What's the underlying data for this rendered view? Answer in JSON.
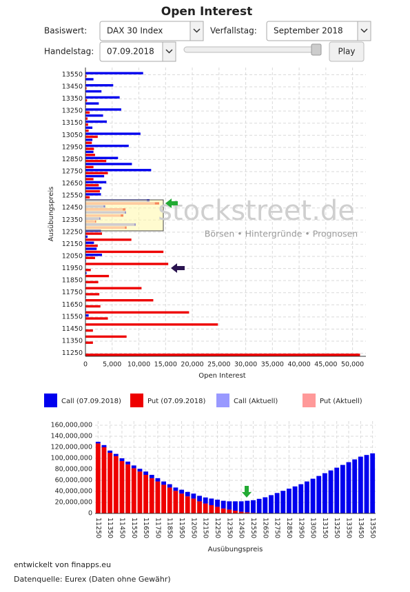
{
  "header": {
    "title": "Open Interest"
  },
  "controls": {
    "basiswert_label": "Basiswert:",
    "basiswert_value": "DAX 30 Index",
    "verfallstag_label": "Verfallstag:",
    "verfallstag_value": "September 2018",
    "handelstag_label": "Handelstag:",
    "handelstag_value": "07.09.2018",
    "play_button": "Play"
  },
  "watermark": {
    "logo": "stockstreet.de",
    "tagline": "Börsen • Hintergründe • Prognosen"
  },
  "chart_data": [
    {
      "type": "hbar",
      "x_label": "Open Interest",
      "y_label": "Ausübungspreis",
      "categories": [
        13550,
        null,
        13450,
        null,
        13350,
        null,
        13250,
        null,
        13150,
        null,
        13050,
        null,
        12950,
        null,
        12850,
        null,
        12750,
        null,
        12650,
        null,
        12550,
        null,
        12450,
        null,
        12350,
        null,
        12250,
        null,
        12150,
        null,
        12050,
        null,
        11950,
        null,
        11850,
        null,
        11750,
        null,
        11650,
        null,
        11550,
        null,
        11450,
        null,
        11350,
        null,
        11250
      ],
      "series": [
        {
          "name": "Call (07.09.2018)",
          "color": "#0000ee",
          "values": [
            10800,
            1500,
            5200,
            3000,
            6400,
            2500,
            6700,
            3300,
            4000,
            1300,
            10300,
            1300,
            8100,
            1500,
            6100,
            8700,
            12300,
            3500,
            3900,
            3000,
            2900,
            12000,
            3700,
            7600,
            2800,
            9400,
            2900,
            400,
            1600,
            2100,
            3100,
            100,
            0,
            200,
            0,
            100,
            0,
            100,
            0,
            100,
            600,
            0,
            0,
            0,
            0,
            0,
            0
          ]
        },
        {
          "name": "Put (07.09.2018)",
          "color": "#ee0000",
          "values": [
            200,
            100,
            200,
            100,
            300,
            100,
            800,
            400,
            500,
            600,
            2300,
            1200,
            1600,
            1800,
            3900,
            1500,
            4200,
            1500,
            2500,
            2700,
            800,
            13800,
            7500,
            7100,
            2000,
            7700,
            3100,
            8600,
            2300,
            14600,
            1800,
            15500,
            1000,
            4400,
            2400,
            10500,
            2600,
            12700,
            2800,
            19400,
            4200,
            24800,
            1400,
            7700,
            1400,
            0,
            51400
          ]
        },
        {
          "name": "Call (Aktuell)",
          "color": "#9999ff",
          "values": [
            null,
            null,
            null,
            null,
            null,
            null,
            null,
            null,
            null,
            null,
            null,
            null,
            null,
            null,
            null,
            null,
            null,
            null,
            null,
            null,
            null,
            11500,
            3400,
            7400,
            2600,
            9200,
            null,
            null,
            null,
            null,
            null,
            null,
            null,
            null,
            null,
            null,
            null,
            null,
            null,
            null,
            null,
            null,
            null,
            null,
            null,
            null,
            null
          ]
        },
        {
          "name": "Put (Aktuell)",
          "color": "#ff9999",
          "values": [
            null,
            null,
            null,
            null,
            null,
            null,
            null,
            null,
            null,
            null,
            null,
            null,
            null,
            null,
            null,
            null,
            null,
            null,
            null,
            null,
            null,
            13000,
            7000,
            6600,
            1800,
            7400,
            null,
            null,
            null,
            null,
            null,
            null,
            null,
            null,
            null,
            null,
            null,
            null,
            null,
            null,
            null,
            null,
            null,
            null,
            null,
            null,
            null
          ]
        }
      ],
      "xlim": [
        0,
        52500
      ],
      "xticks": [
        0,
        {
          "value": 5000,
          "label": "5,000"
        },
        {
          "value": 10000,
          "label": "10,000"
        },
        {
          "value": 15000,
          "label": "15,000"
        },
        {
          "value": 20000,
          "label": "20,000"
        },
        {
          "value": 25000,
          "label": "25,000"
        },
        {
          "value": 30000,
          "label": "30,000"
        },
        {
          "value": 35000,
          "label": "35,000"
        },
        {
          "value": 40000,
          "label": "40,000"
        },
        {
          "value": 45000,
          "label": "45,000"
        },
        {
          "value": 50000,
          "label": "50,000"
        }
      ],
      "grid": true
    },
    {
      "type": "stacked_bar",
      "x_label": "Ausübungspreis",
      "categories": [
        11250,
        null,
        11350,
        null,
        11450,
        null,
        11550,
        null,
        11650,
        null,
        11750,
        null,
        11850,
        null,
        11950,
        null,
        12050,
        null,
        12150,
        null,
        12250,
        null,
        12350,
        null,
        12450,
        null,
        12550,
        null,
        12650,
        null,
        12750,
        null,
        12850,
        null,
        12950,
        null,
        13050,
        null,
        13150,
        null,
        13250,
        null,
        13350,
        null,
        13450,
        null,
        13550
      ],
      "series": [
        {
          "color": "#ee0000",
          "values": [
            127000000,
            120000000,
            110000000,
            104000000,
            95000000,
            89000000,
            82000000,
            76000000,
            70000000,
            64000000,
            58000000,
            52000000,
            47000000,
            41000000,
            36000000,
            31000000,
            27000000,
            22000000,
            18000000,
            15000000,
            12000000,
            9000000,
            7000000,
            5000000,
            3000000,
            2000000,
            1000000,
            500000,
            300000,
            200000,
            100000,
            0,
            0,
            0,
            0,
            0,
            0,
            0,
            0,
            0,
            0,
            0,
            0,
            0,
            0,
            0,
            0
          ]
        },
        {
          "color": "#0000ee",
          "values": [
            3000000,
            4000000,
            4000000,
            4000000,
            5000000,
            5000000,
            5000000,
            5000000,
            6000000,
            6000000,
            6000000,
            6000000,
            6000000,
            6000000,
            7000000,
            8000000,
            9000000,
            10000000,
            11000000,
            12000000,
            13000000,
            14000000,
            15000000,
            17000000,
            19000000,
            21000000,
            23000000,
            26000000,
            29000000,
            33000000,
            37000000,
            41000000,
            45000000,
            49000000,
            53000000,
            58000000,
            63000000,
            68000000,
            73000000,
            78000000,
            83000000,
            88000000,
            93000000,
            98000000,
            103000000,
            106000000,
            109000000
          ]
        }
      ],
      "ylim": [
        0,
        160000000
      ],
      "yticks": [
        0,
        {
          "value": 20000000,
          "label": "20,000,000"
        },
        {
          "value": 40000000,
          "label": "40,000,000"
        },
        {
          "value": 60000000,
          "label": "60,000,000"
        },
        {
          "value": 80000000,
          "label": "80,000,000"
        },
        {
          "value": 100000000,
          "label": "100,000,000"
        },
        {
          "value": 120000000,
          "label": "120,000,000"
        },
        {
          "value": 140000000,
          "label": "140,000,000"
        },
        {
          "value": 160000000,
          "label": "160,000,000"
        }
      ],
      "grid": true
    }
  ],
  "footer": {
    "credit": "entwickelt von finapps.eu",
    "source": "Datenquelle: Eurex (Daten ohne Gewähr)"
  }
}
